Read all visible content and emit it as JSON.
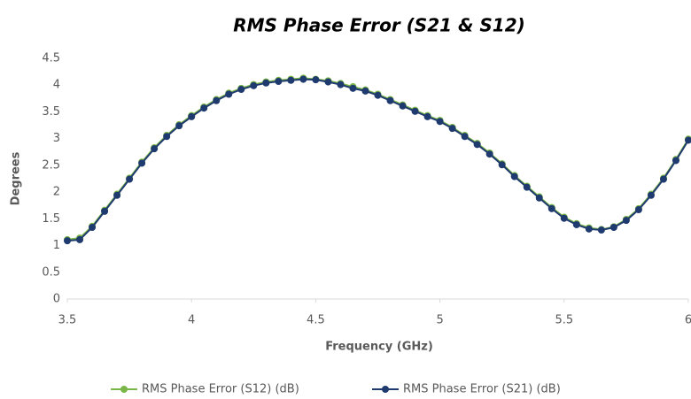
{
  "chart_data": {
    "type": "line",
    "title": "RMS Phase Error (S21 & S12)",
    "x_label": "Frequency (GHz)",
    "y_label": "Degrees",
    "x": [
      3.5,
      3.55,
      3.6,
      3.65,
      3.7,
      3.75,
      3.8,
      3.85,
      3.9,
      3.95,
      4.0,
      4.05,
      4.1,
      4.15,
      4.2,
      4.25,
      4.3,
      4.35,
      4.4,
      4.45,
      4.5,
      4.55,
      4.6,
      4.65,
      4.7,
      4.75,
      4.8,
      4.85,
      4.9,
      4.95,
      5.0,
      5.05,
      5.1,
      5.15,
      5.2,
      5.25,
      5.3,
      5.35,
      5.4,
      5.45,
      5.5,
      5.55,
      5.6,
      5.65,
      5.7,
      5.75,
      5.8,
      5.85,
      5.9,
      5.95,
      6.0
    ],
    "series": [
      {
        "name": "RMS Phase Error (S12) (dB)",
        "color": "#7ab648",
        "values": [
          1.11,
          1.14,
          1.36,
          1.66,
          1.96,
          2.26,
          2.56,
          2.83,
          3.06,
          3.26,
          3.43,
          3.59,
          3.73,
          3.85,
          3.94,
          4.01,
          4.06,
          4.09,
          4.11,
          4.13,
          4.11,
          4.08,
          4.03,
          3.97,
          3.91,
          3.83,
          3.73,
          3.63,
          3.53,
          3.43,
          3.34,
          3.21,
          3.06,
          2.91,
          2.73,
          2.53,
          2.31,
          2.11,
          1.91,
          1.71,
          1.53,
          1.41,
          1.33,
          1.3,
          1.35,
          1.49,
          1.69,
          1.96,
          2.26,
          2.61,
          2.99
        ]
      },
      {
        "name": "RMS Phase Error (S21) (dB)",
        "color": "#1f3a6e",
        "values": [
          1.09,
          1.11,
          1.34,
          1.64,
          1.94,
          2.24,
          2.54,
          2.81,
          3.04,
          3.24,
          3.41,
          3.57,
          3.71,
          3.83,
          3.92,
          3.99,
          4.04,
          4.07,
          4.09,
          4.11,
          4.1,
          4.06,
          4.01,
          3.94,
          3.89,
          3.81,
          3.71,
          3.61,
          3.51,
          3.41,
          3.32,
          3.19,
          3.04,
          2.89,
          2.71,
          2.51,
          2.29,
          2.09,
          1.89,
          1.69,
          1.51,
          1.39,
          1.31,
          1.29,
          1.34,
          1.47,
          1.67,
          1.94,
          2.24,
          2.59,
          2.97
        ]
      }
    ],
    "xlim": [
      3.5,
      6
    ],
    "xticks": [
      3.5,
      4,
      4.5,
      5,
      5.5,
      6
    ],
    "ylim": [
      0,
      4.5
    ],
    "yticks": [
      0,
      0.5,
      1,
      1.5,
      2,
      2.5,
      3,
      3.5,
      4,
      4.5
    ],
    "grid": false,
    "legend": "bottom"
  }
}
